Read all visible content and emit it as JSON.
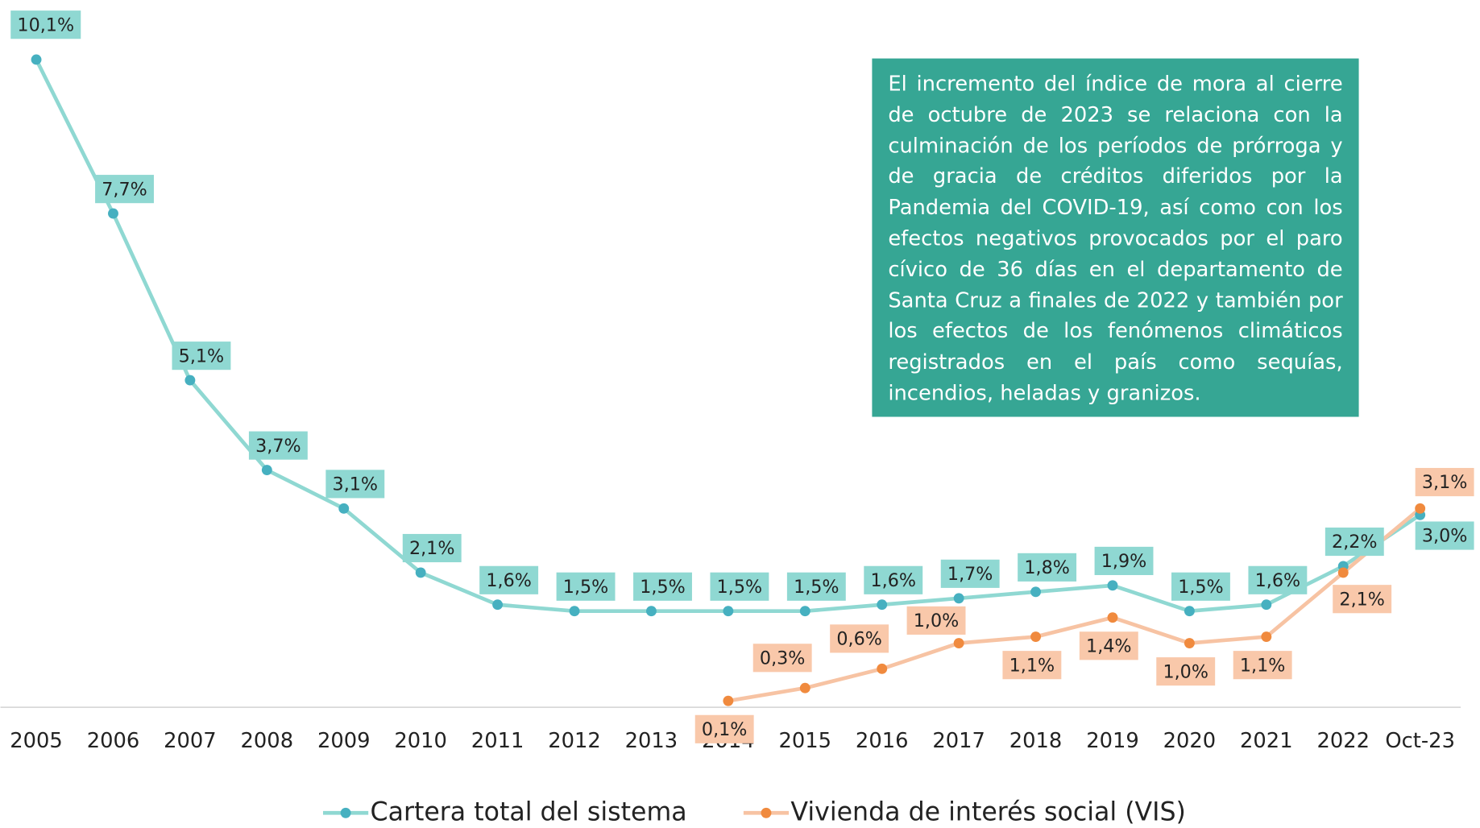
{
  "chart_data": {
    "type": "line",
    "categories": [
      "2005",
      "2006",
      "2007",
      "2008",
      "2009",
      "2010",
      "2011",
      "2012",
      "2013",
      "2014",
      "2015",
      "2016",
      "2017",
      "2018",
      "2019",
      "2020",
      "2021",
      "2022",
      "Oct-23"
    ],
    "series": [
      {
        "name": "Cartera total del sistema",
        "color": "#8fd8d2",
        "marker_color": "#46b0c0",
        "label_color": "#8fd8d2",
        "values": [
          10.1,
          7.7,
          5.1,
          3.7,
          3.1,
          2.1,
          1.6,
          1.5,
          1.5,
          1.5,
          1.5,
          1.6,
          1.7,
          1.8,
          1.9,
          1.5,
          1.6,
          2.2,
          3.0
        ],
        "value_labels": [
          "10,1%",
          "7,7%",
          "5,1%",
          "3,7%",
          "3,1%",
          "2,1%",
          "1,6%",
          "1,5%",
          "1,5%",
          "1,5%",
          "1,5%",
          "1,6%",
          "1,7%",
          "1,8%",
          "1,9%",
          "1,5%",
          "1,6%",
          "2,2%",
          "3,0%"
        ]
      },
      {
        "name": "Vivienda de interés social (VIS)",
        "color": "#f7c3a3",
        "marker_color": "#f08a3e",
        "label_color": "#f9c8aa",
        "values": [
          null,
          null,
          null,
          null,
          null,
          null,
          null,
          null,
          null,
          0.1,
          0.3,
          0.6,
          1.0,
          1.1,
          1.4,
          1.0,
          1.1,
          2.1,
          3.1
        ],
        "value_labels": [
          null,
          null,
          null,
          null,
          null,
          null,
          null,
          null,
          null,
          "0,1%",
          "0,3%",
          "0,6%",
          "1,0%",
          "1,1%",
          "1,4%",
          "1,0%",
          "1,1%",
          "2,1%",
          "3,1%"
        ]
      }
    ],
    "ylim": [
      0,
      11
    ],
    "grid": false,
    "legend": "bottom",
    "annotation": "El incremento del índice de mora al cierre de octubre de 2023 se relaciona con la culminación de los períodos de prórroga y de gracia de créditos diferidos por la Pandemia del COVID-19, así como con los efectos negativos provocados por el paro cívico de 36 días en el departamento de Santa Cruz a finales de 2022 y también por los efectos de los fenómenos climáticos registrados en el país como sequías, incendios, heladas y granizos."
  }
}
